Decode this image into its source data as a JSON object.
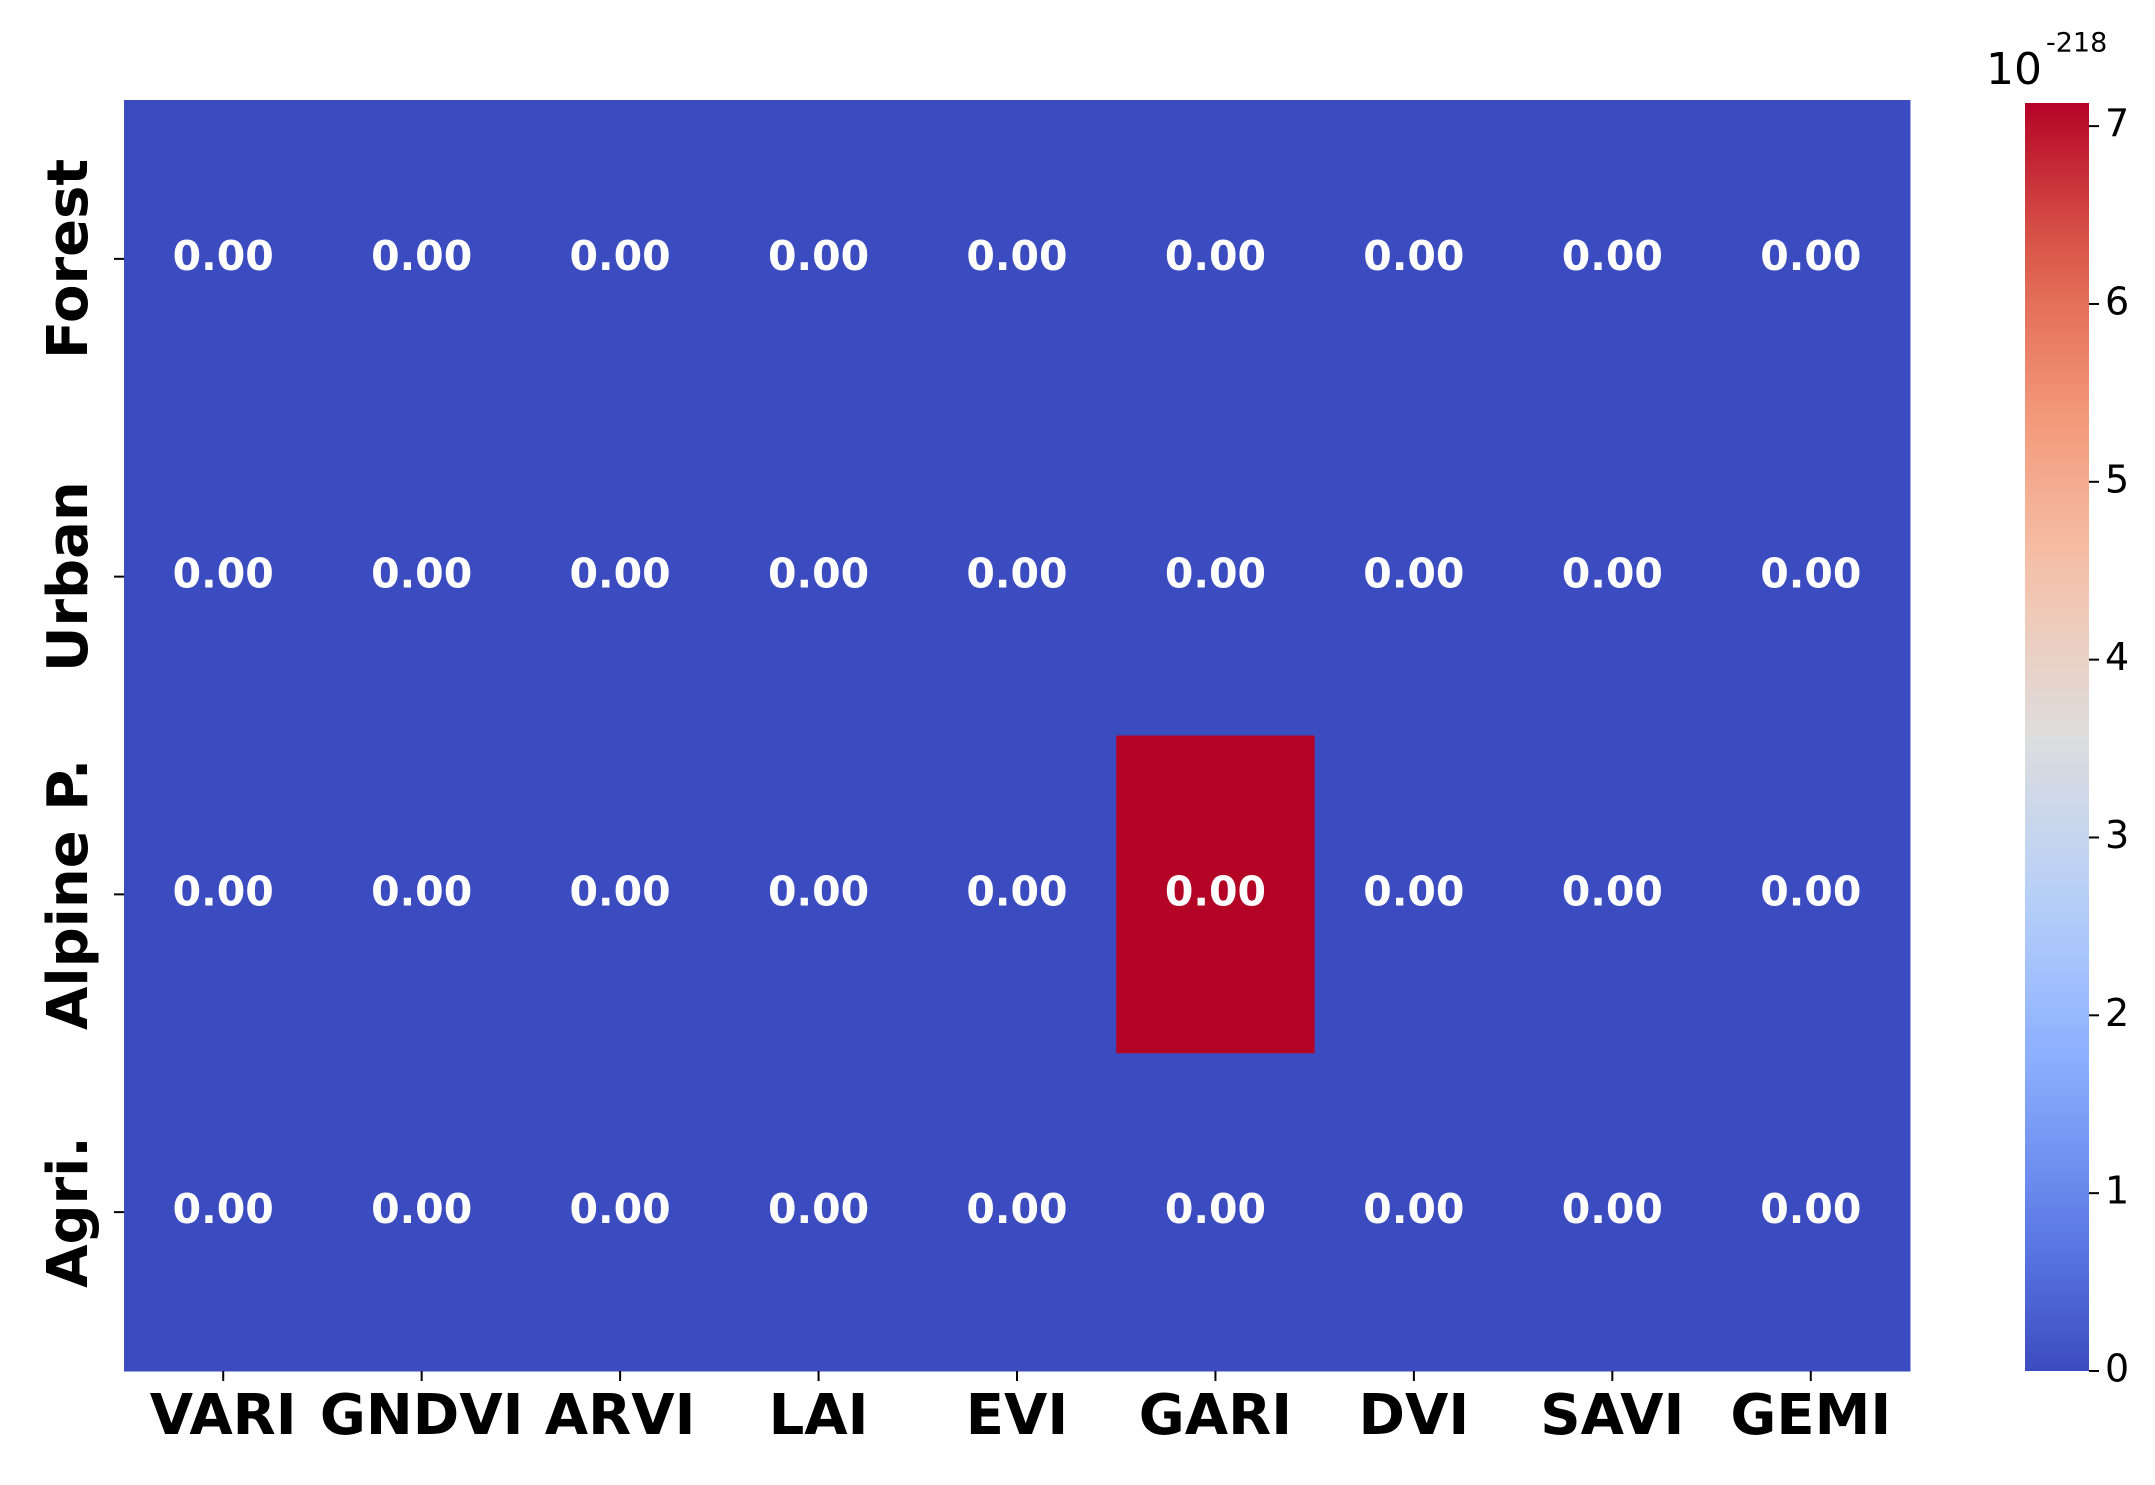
{
  "chart_data": {
    "type": "heatmap",
    "categories": [
      "VARI",
      "GNDVI",
      "ARVI",
      "LAI",
      "EVI",
      "GARI",
      "DVI",
      "SAVI",
      "GEMI"
    ],
    "rows": [
      "Forest",
      "Urban",
      "Alpine P.",
      "Agri."
    ],
    "values": [
      [
        0,
        0,
        0,
        0,
        0,
        0,
        0,
        0,
        0
      ],
      [
        0,
        0,
        0,
        0,
        0,
        0,
        0,
        0,
        0
      ],
      [
        0,
        0,
        0,
        0,
        0,
        7.13e-218,
        0,
        0,
        0
      ],
      [
        0,
        0,
        0,
        0,
        0,
        0,
        0,
        0,
        0
      ]
    ],
    "value_labels": [
      [
        "0.00",
        "0.00",
        "0.00",
        "0.00",
        "0.00",
        "0.00",
        "0.00",
        "0.00",
        "0.00"
      ],
      [
        "0.00",
        "0.00",
        "0.00",
        "0.00",
        "0.00",
        "0.00",
        "0.00",
        "0.00",
        "0.00"
      ],
      [
        "0.00",
        "0.00",
        "0.00",
        "0.00",
        "0.00",
        "0.00",
        "0.00",
        "0.00",
        "0.00"
      ],
      [
        "0.00",
        "0.00",
        "0.00",
        "0.00",
        "0.00",
        "0.00",
        "0.00",
        "0.00",
        "0.00"
      ]
    ],
    "colormap": "coolwarm",
    "zlim": [
      0,
      7.13e-218
    ],
    "zticks": [
      {
        "value": 0,
        "label": "0"
      },
      {
        "value": 1e-218,
        "label": "1"
      },
      {
        "value": 2e-218,
        "label": "2"
      },
      {
        "value": 3e-218,
        "label": "3"
      },
      {
        "value": 4e-218,
        "label": "4"
      },
      {
        "value": 5e-218,
        "label": "5"
      },
      {
        "value": 6e-218,
        "label": "6"
      },
      {
        "value": 7e-218,
        "label": "7"
      }
    ],
    "colorbar_offset_base": "10",
    "colorbar_offset_exponent": "-218"
  }
}
